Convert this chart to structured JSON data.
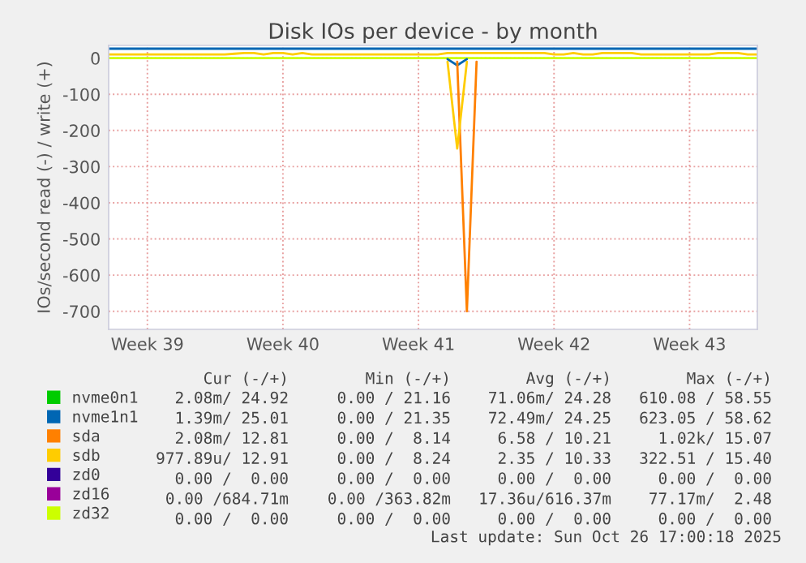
{
  "chart_data": {
    "type": "line",
    "title": "Disk IOs per device - by month",
    "ylabel": "IOs/second read (-) / write (+)",
    "categories": [
      null,
      null,
      null,
      null,
      "Week 39",
      null,
      null,
      null,
      null,
      null,
      null,
      null,
      null,
      null,
      null,
      null,
      null,
      null,
      "Week 40",
      null,
      null,
      null,
      null,
      null,
      null,
      null,
      null,
      null,
      null,
      null,
      null,
      null,
      "Week 41",
      null,
      null,
      null,
      null,
      null,
      null,
      null,
      null,
      null,
      null,
      null,
      null,
      null,
      "Week 42",
      null,
      null,
      null,
      null,
      null,
      null,
      null,
      null,
      null,
      null,
      null,
      null,
      null,
      "Week 43",
      null,
      null,
      null,
      null,
      null,
      null,
      null
    ],
    "ylim": [
      -750,
      35
    ],
    "yticks": [
      0,
      -100,
      -200,
      -300,
      -400,
      -500,
      -600,
      -700
    ],
    "grid": true,
    "legend": "bottom",
    "series": [
      {
        "name": "nvme0n1",
        "color": "#00cc00",
        "values": [
          null,
          null,
          null,
          null,
          null,
          null,
          null,
          null,
          null,
          null,
          null,
          null,
          null,
          null,
          null,
          null,
          null,
          null,
          null,
          null,
          null,
          null,
          null,
          null,
          null,
          null,
          null,
          null,
          null,
          null,
          null,
          null,
          null,
          null,
          null,
          null,
          null,
          null,
          null,
          null,
          null,
          null,
          null,
          null,
          null,
          null,
          null,
          null,
          null,
          null,
          null,
          null,
          null,
          null,
          null,
          null,
          null,
          null,
          null,
          null,
          null,
          null,
          null,
          null,
          null,
          null,
          null,
          null
        ]
      },
      {
        "name": "nvme1n1",
        "color": "#0066b3",
        "values": [
          26,
          26,
          26,
          26,
          26,
          26,
          26,
          26,
          26,
          26,
          26,
          26,
          26,
          26,
          26,
          26,
          26,
          26,
          26,
          26,
          26,
          26,
          26,
          26,
          26,
          26,
          26,
          26,
          26,
          26,
          26,
          26,
          26,
          26,
          26,
          26,
          26,
          26,
          26,
          26,
          26,
          26,
          26,
          26,
          26,
          26,
          26,
          26,
          26,
          26,
          26,
          26,
          26,
          26,
          26,
          26,
          26,
          26,
          26,
          26,
          26,
          26,
          26,
          26,
          26,
          26,
          26,
          26
        ]
      },
      {
        "name": "sda",
        "color": "#ff8000",
        "values": [
          null,
          null,
          null,
          null,
          null,
          null,
          null,
          null,
          null,
          null,
          null,
          null,
          null,
          null,
          null,
          null,
          null,
          null,
          null,
          null,
          null,
          null,
          null,
          null,
          null,
          null,
          null,
          null,
          null,
          null,
          null,
          null,
          null,
          null,
          null,
          null,
          null,
          null,
          null,
          null,
          null,
          null,
          null,
          null,
          null,
          null,
          null,
          null,
          null,
          null,
          null,
          null,
          null,
          null,
          null,
          null,
          null,
          null,
          null,
          null,
          null,
          null,
          null,
          null,
          null,
          null,
          null,
          null
        ]
      },
      {
        "name": "sdb",
        "color": "#ffcc00",
        "values": [
          10,
          10,
          10,
          10,
          10,
          10,
          10,
          10,
          10,
          10,
          10,
          10,
          10,
          12,
          14,
          14,
          10,
          14,
          14,
          10,
          14,
          10,
          10,
          10,
          10,
          10,
          10,
          10,
          10,
          10,
          10,
          10,
          10,
          10,
          10,
          14,
          14,
          14,
          14,
          14,
          14,
          14,
          14,
          14,
          14,
          14,
          10,
          10,
          14,
          10,
          10,
          14,
          14,
          14,
          14,
          10,
          10,
          10,
          10,
          10,
          10,
          10,
          10,
          14,
          14,
          14,
          10,
          10
        ]
      },
      {
        "name": "zd0",
        "color": "#330099",
        "values": [
          null,
          null,
          null,
          null,
          null,
          null,
          null,
          null,
          null,
          null,
          null,
          null,
          null,
          null,
          null,
          null,
          null,
          null,
          null,
          null,
          null,
          null,
          null,
          null,
          null,
          null,
          null,
          null,
          null,
          null,
          null,
          null,
          null,
          null,
          null,
          null,
          null,
          null,
          null,
          null,
          null,
          null,
          null,
          null,
          null,
          null,
          null,
          null,
          null,
          null,
          null,
          null,
          null,
          null,
          null,
          null,
          null,
          null,
          null,
          null,
          null,
          null,
          null,
          null,
          null,
          null,
          null,
          null
        ]
      },
      {
        "name": "zd16",
        "color": "#990099",
        "values": [
          null,
          null,
          null,
          null,
          null,
          null,
          null,
          null,
          null,
          null,
          null,
          null,
          null,
          null,
          null,
          null,
          null,
          null,
          null,
          null,
          null,
          null,
          null,
          null,
          null,
          null,
          null,
          null,
          null,
          null,
          null,
          null,
          null,
          null,
          null,
          null,
          null,
          null,
          null,
          null,
          null,
          null,
          null,
          null,
          null,
          null,
          null,
          null,
          null,
          null,
          null,
          null,
          null,
          null,
          null,
          null,
          null,
          null,
          null,
          null,
          null,
          null,
          null,
          null,
          null,
          null,
          null,
          null
        ]
      },
      {
        "name": "zd32",
        "color": "#ccff00",
        "values": [
          0,
          0,
          0,
          0,
          0,
          0,
          0,
          0,
          0,
          0,
          0,
          0,
          0,
          0,
          0,
          0,
          0,
          0,
          0,
          0,
          0,
          0,
          0,
          0,
          0,
          0,
          0,
          0,
          0,
          0,
          0,
          0,
          0,
          0,
          0,
          0,
          0,
          0,
          0,
          0,
          0,
          0,
          0,
          0,
          0,
          0,
          0,
          0,
          0,
          0,
          0,
          0,
          0,
          0,
          0,
          0,
          0,
          0,
          0,
          0,
          0,
          0,
          0,
          0,
          0,
          0,
          0,
          0
        ]
      },
      {
        "color": "#0066b3",
        "values": [
          null,
          null,
          null,
          null,
          null,
          null,
          null,
          null,
          null,
          null,
          null,
          null,
          null,
          null,
          null,
          null,
          null,
          null,
          null,
          null,
          null,
          null,
          null,
          null,
          null,
          null,
          null,
          null,
          null,
          null,
          null,
          null,
          null,
          null,
          null,
          -3,
          -20,
          -3,
          null,
          null,
          null,
          null,
          null,
          null,
          null,
          null,
          null,
          null,
          null,
          null,
          null,
          null,
          null,
          null,
          null,
          null,
          null,
          null,
          null,
          null,
          null,
          null,
          null,
          null,
          null,
          null,
          null,
          null
        ]
      },
      {
        "color": "#ff8000",
        "values": [
          null,
          null,
          null,
          null,
          null,
          null,
          null,
          null,
          null,
          null,
          null,
          null,
          null,
          null,
          null,
          null,
          null,
          null,
          null,
          null,
          null,
          null,
          null,
          null,
          null,
          null,
          null,
          null,
          null,
          null,
          null,
          null,
          null,
          null,
          null,
          null,
          -10,
          -700,
          -10,
          null,
          null,
          null,
          null,
          null,
          null,
          null,
          null,
          null,
          null,
          null,
          null,
          null,
          null,
          null,
          null,
          null,
          null,
          null,
          null,
          null,
          null,
          null,
          null,
          null,
          null,
          null,
          null,
          null
        ]
      },
      {
        "color": "#ffcc00",
        "values": [
          null,
          null,
          null,
          null,
          null,
          null,
          null,
          null,
          null,
          null,
          null,
          null,
          null,
          null,
          null,
          null,
          null,
          null,
          null,
          null,
          null,
          null,
          null,
          null,
          null,
          null,
          null,
          null,
          null,
          null,
          null,
          null,
          null,
          null,
          null,
          -10,
          -250,
          -10,
          null,
          null,
          null,
          null,
          null,
          null,
          null,
          null,
          null,
          null,
          null,
          null,
          null,
          null,
          null,
          null,
          null,
          null,
          null,
          null,
          null,
          null,
          null,
          null,
          null,
          null,
          null,
          null,
          null,
          null
        ]
      }
    ],
    "annotations": [
      "Cur (-/+)",
      "Min (-/+)",
      "Avg (-/+)",
      "Max (-/+)",
      "2.08m/ 24.92",
      "0.00 / 21.16",
      "71.06m/ 24.28",
      "610.08 / 58.55",
      "1.39m/ 25.01",
      "0.00 / 21.35",
      "72.49m/ 24.25",
      "623.05 / 58.62",
      "2.08m/ 12.81",
      "0.00 /  8.14",
      "6.58 / 10.21",
      "1.02k/ 15.07",
      "977.89u/ 12.91",
      "0.00 /  8.24",
      "2.35 / 10.33",
      "322.51 / 15.40",
      "0.00 /  0.00",
      "0.00 /  0.00",
      "0.00 /  0.00",
      "0.00 /  0.00",
      "0.00 /684.71m",
      "0.00 /363.82m",
      "17.36u/616.37m",
      "77.17m/  2.48",
      "0.00 /  0.00",
      "0.00 /  0.00",
      "0.00 /  0.00",
      "0.00 /  0.00",
      "Last update: Sun Oct 26 17:00:18 2025"
    ]
  }
}
